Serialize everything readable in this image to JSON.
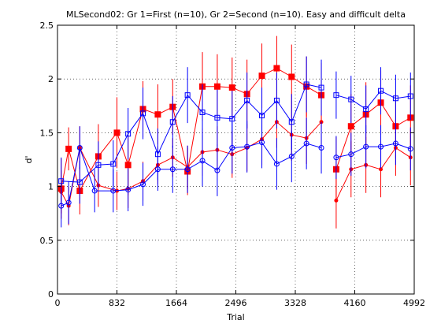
{
  "chart_data": {
    "type": "line",
    "title": "MLSecond02: Gr 1=First (n=10), Gr 2=Second (n=10). Easy and difficult delta",
    "xlabel": "Trial",
    "ylabel": "d'",
    "xlim": [
      0,
      4992
    ],
    "ylim": [
      0,
      2.5
    ],
    "xticks": [
      0,
      832,
      1664,
      2496,
      3328,
      4160,
      4992
    ],
    "xtick_labels": [
      "0",
      "832",
      "1664",
      "2496",
      "3328",
      "4160",
      "4992"
    ],
    "yticks": [
      0,
      0.5,
      1,
      1.5,
      2,
      2.5
    ],
    "ytick_labels": [
      "0",
      "0.5",
      "1",
      "1.5",
      "2",
      "2.5"
    ],
    "grid": true,
    "series": [
      {
        "color": "#ff0000",
        "marker": "filled-square",
        "x": [
          52,
          156,
          312,
          572,
          832,
          988,
          1196,
          1404,
          1612,
          1820,
          2028,
          2236,
          2444,
          2652,
          2860,
          3068,
          3276,
          3484,
          3692
        ],
        "y": [
          0.98,
          1.35,
          0.96,
          1.28,
          1.5,
          1.2,
          1.72,
          1.67,
          1.74,
          1.14,
          1.93,
          1.93,
          1.92,
          1.86,
          2.03,
          2.1,
          2.02,
          1.93,
          1.85
        ],
        "err": [
          0.28,
          0.2,
          0.22,
          0.3,
          0.33,
          0.28,
          0.26,
          0.28,
          0.26,
          0.22,
          0.32,
          0.3,
          0.28,
          0.32,
          0.3,
          0.3,
          0.3,
          0.28,
          0.3
        ]
      },
      {
        "color": "#ff0000",
        "marker": "filled-circle",
        "x": [
          52,
          156,
          312,
          572,
          832,
          988,
          1196,
          1404,
          1612,
          1820,
          2028,
          2236,
          2444,
          2652,
          2860,
          3068,
          3276,
          3484,
          3692
        ],
        "y": [
          0.95,
          0.82,
          1.36,
          1.01,
          0.96,
          0.98,
          1.05,
          1.2,
          1.27,
          1.18,
          1.32,
          1.34,
          1.3,
          1.36,
          1.44,
          1.6,
          1.48,
          1.45,
          1.6
        ],
        "err": [
          0.2,
          0.18,
          0.2,
          0.2,
          0.18,
          0.18,
          0.18,
          0.18,
          0.18,
          0.2,
          0.22,
          0.22,
          0.22,
          0.22,
          0.24,
          0.24,
          0.24,
          0.24,
          0.24
        ]
      },
      {
        "color": "#0000ff",
        "marker": "open-square",
        "x": [
          52,
          312,
          572,
          780,
          988,
          1196,
          1404,
          1612,
          1820,
          2028,
          2236,
          2444,
          2652,
          2860,
          3068,
          3276,
          3484,
          3692
        ],
        "y": [
          1.05,
          1.04,
          1.2,
          1.21,
          1.49,
          1.68,
          1.3,
          1.6,
          1.85,
          1.69,
          1.64,
          1.63,
          1.8,
          1.66,
          1.8,
          1.6,
          1.95,
          1.92
        ],
        "err": [
          0.22,
          0.2,
          0.22,
          0.22,
          0.24,
          0.24,
          0.24,
          0.24,
          0.26,
          0.26,
          0.26,
          0.26,
          0.26,
          0.26,
          0.26,
          0.26,
          0.26,
          0.26
        ]
      },
      {
        "color": "#0000ff",
        "marker": "open-circle",
        "x": [
          52,
          156,
          312,
          520,
          780,
          988,
          1196,
          1404,
          1612,
          1820,
          2028,
          2236,
          2444,
          2652,
          2860,
          3068,
          3276,
          3484,
          3692
        ],
        "y": [
          0.82,
          0.85,
          1.36,
          0.96,
          0.96,
          0.97,
          1.02,
          1.16,
          1.16,
          1.16,
          1.24,
          1.15,
          1.36,
          1.37,
          1.41,
          1.21,
          1.28,
          1.4,
          1.36
        ],
        "err": [
          0.2,
          0.2,
          0.2,
          0.2,
          0.2,
          0.2,
          0.2,
          0.2,
          0.22,
          0.22,
          0.24,
          0.24,
          0.24,
          0.24,
          0.24,
          0.24,
          0.24,
          0.24,
          0.24
        ]
      },
      {
        "color": "#ff0000",
        "marker": "filled-square",
        "x": [
          3900,
          4108,
          4316,
          4524,
          4732,
          4940
        ],
        "y": [
          1.16,
          1.56,
          1.67,
          1.78,
          1.56,
          1.64
        ],
        "err": [
          0.3,
          0.3,
          0.3,
          0.3,
          0.3,
          0.3
        ]
      },
      {
        "color": "#ff0000",
        "marker": "filled-circle",
        "x": [
          3900,
          4108,
          4316,
          4524,
          4732,
          4940
        ],
        "y": [
          0.87,
          1.16,
          1.2,
          1.16,
          1.36,
          1.27
        ],
        "err": [
          0.26,
          0.26,
          0.26,
          0.26,
          0.26,
          0.26
        ]
      },
      {
        "color": "#0000ff",
        "marker": "open-square",
        "x": [
          3900,
          4108,
          4316,
          4524,
          4732,
          4940
        ],
        "y": [
          1.85,
          1.81,
          1.72,
          1.89,
          1.82,
          1.84
        ],
        "err": [
          0.22,
          0.22,
          0.22,
          0.22,
          0.22,
          0.22
        ]
      },
      {
        "color": "#0000ff",
        "marker": "open-circle",
        "x": [
          3900,
          4108,
          4316,
          4524,
          4732,
          4940
        ],
        "y": [
          1.27,
          1.3,
          1.37,
          1.37,
          1.4,
          1.35
        ],
        "err": [
          0.2,
          0.2,
          0.2,
          0.2,
          0.2,
          0.2
        ]
      }
    ]
  }
}
